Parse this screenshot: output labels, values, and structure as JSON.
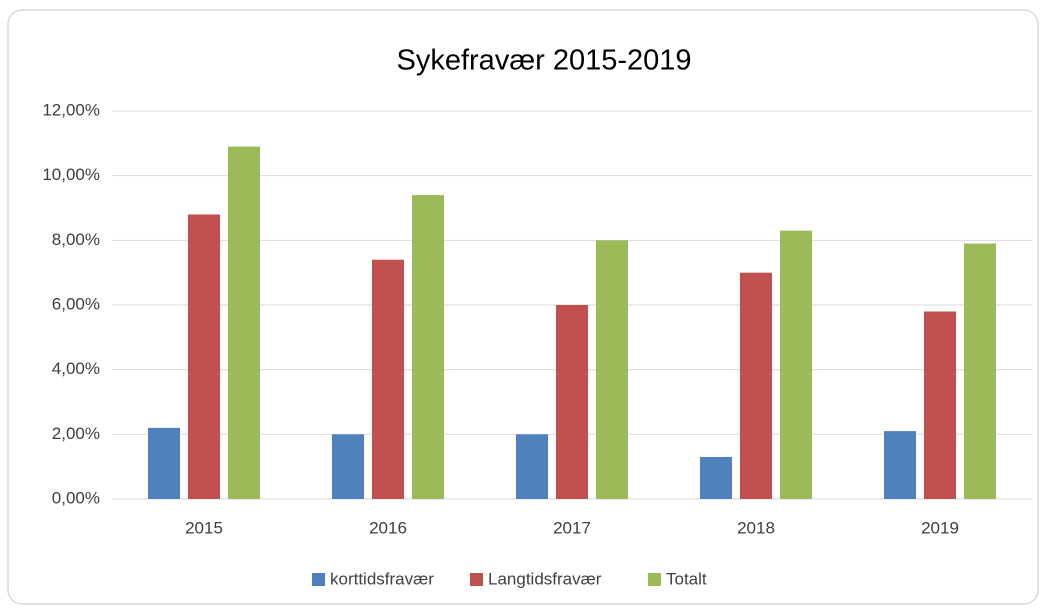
{
  "chart_data": {
    "type": "bar",
    "title": "Sykefravær 2015-2019",
    "categories": [
      "2015",
      "2016",
      "2017",
      "2018",
      "2019"
    ],
    "series": [
      {
        "name": "korttidsfravær",
        "color": "#4f81bd",
        "values": [
          2.2,
          2.0,
          2.0,
          1.3,
          2.1
        ]
      },
      {
        "name": "Langtidsfravær",
        "color": "#c0504d",
        "values": [
          8.8,
          7.4,
          6.0,
          7.0,
          5.8
        ]
      },
      {
        "name": "Totalt",
        "color": "#9bbb59",
        "values": [
          10.9,
          9.4,
          8.0,
          8.3,
          7.9
        ]
      }
    ],
    "ylim": [
      0,
      12
    ],
    "yticks": [
      {
        "value": 0,
        "label": "0,00%"
      },
      {
        "value": 2,
        "label": "2,00%"
      },
      {
        "value": 4,
        "label": "4,00%"
      },
      {
        "value": 6,
        "label": "6,00%"
      },
      {
        "value": 8,
        "label": "8,00%"
      },
      {
        "value": 10,
        "label": "10,00%"
      },
      {
        "value": 12,
        "label": "12,00%"
      }
    ],
    "grid": true,
    "legend": "bottom"
  }
}
